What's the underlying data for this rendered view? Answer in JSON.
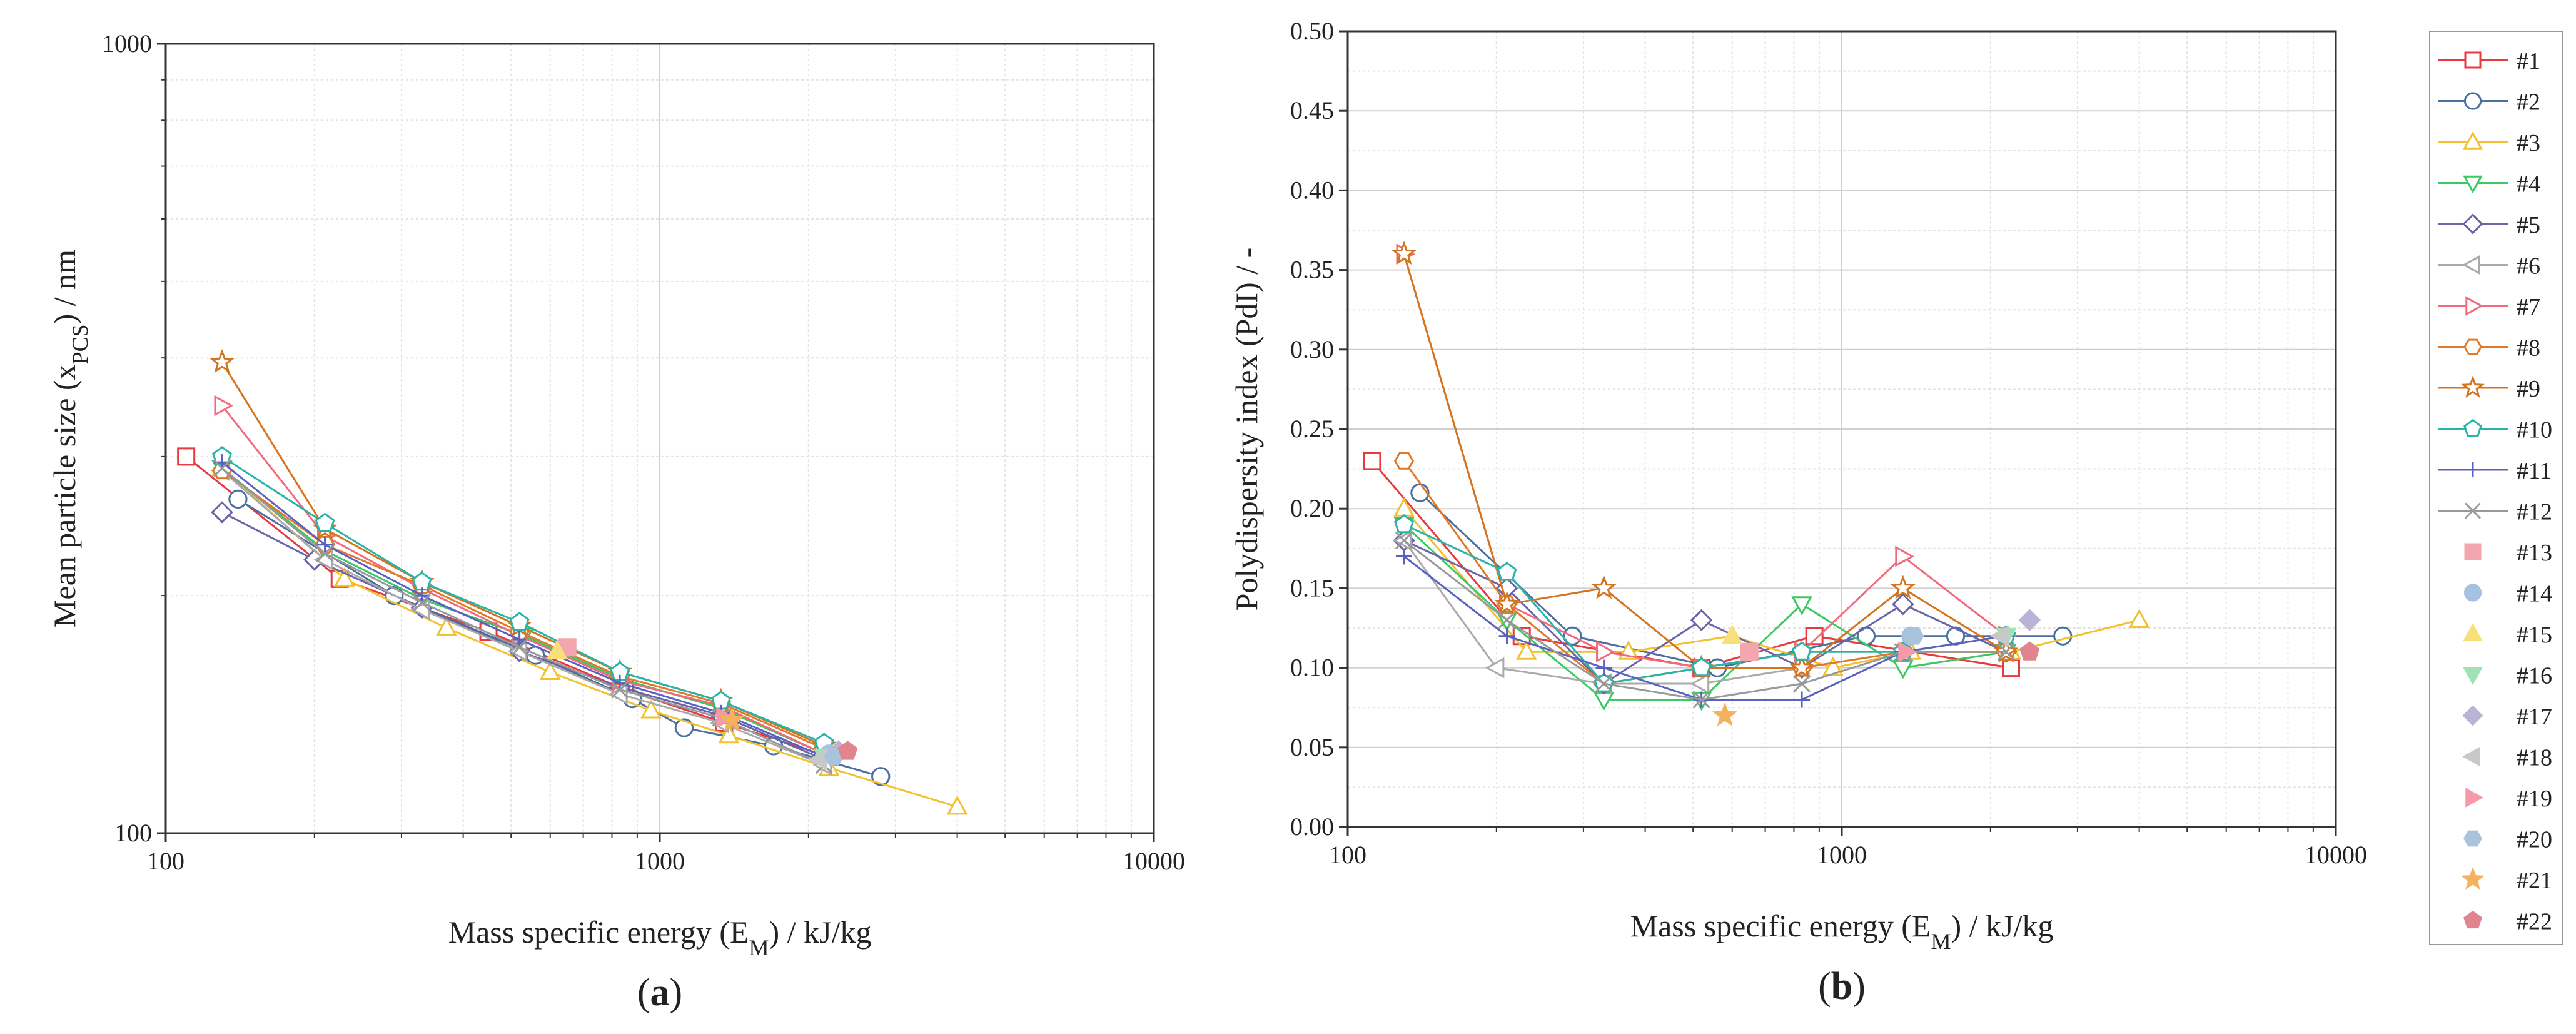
{
  "figure": {
    "panel_labels": [
      "(a)",
      "(b)"
    ]
  },
  "legend": [
    {
      "name": "#1",
      "color": "#e8393f",
      "marker": "square",
      "filled": false
    },
    {
      "name": "#2",
      "color": "#4a6fa0",
      "marker": "circle",
      "filled": false
    },
    {
      "name": "#3",
      "color": "#f2c12e",
      "marker": "triangle-up",
      "filled": false
    },
    {
      "name": "#4",
      "color": "#3cc864",
      "marker": "triangle-down",
      "filled": false
    },
    {
      "name": "#5",
      "color": "#6a64a8",
      "marker": "diamond",
      "filled": false
    },
    {
      "name": "#6",
      "color": "#aaaaaa",
      "marker": "triangle-left",
      "filled": false
    },
    {
      "name": "#7",
      "color": "#f26a7e",
      "marker": "triangle-right",
      "filled": false
    },
    {
      "name": "#8",
      "color": "#e07a2a",
      "marker": "hexagon",
      "filled": false
    },
    {
      "name": "#9",
      "color": "#d4751e",
      "marker": "star",
      "filled": false
    },
    {
      "name": "#10",
      "color": "#2ab3a8",
      "marker": "pentagon",
      "filled": false
    },
    {
      "name": "#11",
      "color": "#5a62c0",
      "marker": "plus",
      "filled": false
    },
    {
      "name": "#12",
      "color": "#999999",
      "marker": "x",
      "filled": false
    },
    {
      "name": "#13",
      "color": "#f4a6ae",
      "marker": "square",
      "filled": true
    },
    {
      "name": "#14",
      "color": "#a7c2e0",
      "marker": "circle",
      "filled": true
    },
    {
      "name": "#15",
      "color": "#f7e07a",
      "marker": "triangle-up",
      "filled": true
    },
    {
      "name": "#16",
      "color": "#9fe3b4",
      "marker": "triangle-down",
      "filled": true
    },
    {
      "name": "#17",
      "color": "#b9b4d6",
      "marker": "diamond",
      "filled": true
    },
    {
      "name": "#18",
      "color": "#c8c8c8",
      "marker": "triangle-left",
      "filled": true
    },
    {
      "name": "#19",
      "color": "#f59aa6",
      "marker": "triangle-right",
      "filled": true
    },
    {
      "name": "#20",
      "color": "#a8c4dc",
      "marker": "hexagon",
      "filled": true
    },
    {
      "name": "#21",
      "color": "#f5b15e",
      "marker": "star",
      "filled": true
    },
    {
      "name": "#22",
      "color": "#e0858e",
      "marker": "pentagon",
      "filled": true
    }
  ],
  "chart_data": [
    {
      "type": "scatter",
      "panel": "(a)",
      "xlabel": "Mass specific energy (E",
      "xlabel_sub": "M",
      "xlabel_tail": ") / kJ/kg",
      "ylabel": "Mean particle size (x",
      "ylabel_sub": "PCS",
      "ylabel_tail": ") / nm",
      "xscale": "log",
      "yscale": "log",
      "xlim": [
        100,
        10000
      ],
      "ylim": [
        100,
        1000
      ],
      "xticks": [
        100,
        1000,
        10000
      ],
      "xtick_labels": [
        "100",
        "1000",
        "10000"
      ],
      "yticks": [
        100,
        1000
      ],
      "ytick_labels": [
        "100",
        "1000"
      ],
      "grid": true,
      "legend": "right",
      "series": [
        {
          "name": "#1",
          "x": [
            110,
            225,
            450,
            850,
            1350,
            2200
          ],
          "y": [
            300,
            210,
            180,
            152,
            138,
            125
          ]
        },
        {
          "name": "#2",
          "x": [
            140,
            290,
            560,
            880,
            1120,
            1700,
            2800
          ],
          "y": [
            265,
            200,
            168,
            148,
            136,
            129,
            118
          ]
        },
        {
          "name": "#3",
          "x": [
            130,
            230,
            370,
            600,
            960,
            1380,
            2200,
            4000
          ],
          "y": [
            290,
            210,
            182,
            160,
            143,
            133,
            121,
            108
          ]
        },
        {
          "name": "#4",
          "x": [
            130,
            210,
            330,
            530,
            830,
            1330,
            2150
          ],
          "y": [
            290,
            228,
            198,
            178,
            157,
            144,
            126
          ]
        },
        {
          "name": "#5",
          "x": [
            130,
            200,
            330,
            520,
            830,
            1330,
            2150
          ],
          "y": [
            255,
            222,
            193,
            170,
            153,
            141,
            124
          ]
        },
        {
          "name": "#6",
          "x": [
            130,
            210,
            330,
            520,
            830,
            1330,
            2150
          ],
          "y": [
            288,
            222,
            192,
            170,
            150,
            138,
            122
          ]
        },
        {
          "name": "#7",
          "x": [
            130,
            210,
            330,
            520,
            830,
            1330,
            2150
          ],
          "y": [
            348,
            238,
            204,
            178,
            156,
            145,
            126
          ]
        },
        {
          "name": "#8",
          "x": [
            130,
            210,
            330,
            520,
            830,
            1330,
            2150
          ],
          "y": [
            288,
            232,
            206,
            180,
            158,
            146,
            128
          ]
        },
        {
          "name": "#9",
          "x": [
            130,
            210,
            330,
            520,
            830,
            1330,
            2150
          ],
          "y": [
            395,
            243,
            208,
            183,
            160,
            147,
            129
          ]
        },
        {
          "name": "#10",
          "x": [
            130,
            210,
            330,
            520,
            830,
            1330,
            2150
          ],
          "y": [
            300,
            247,
            208,
            185,
            160,
            147,
            130
          ]
        },
        {
          "name": "#11",
          "x": [
            130,
            210,
            330,
            520,
            830,
            1330,
            2150
          ],
          "y": [
            295,
            232,
            200,
            176,
            155,
            142,
            125
          ]
        },
        {
          "name": "#12",
          "x": [
            130,
            210,
            330,
            520,
            830,
            1330,
            2150
          ],
          "y": [
            290,
            226,
            196,
            172,
            152,
            140,
            122
          ]
        },
        {
          "name": "#13",
          "x": [
            650
          ],
          "y": [
            172
          ]
        },
        {
          "name": "#14",
          "x": [
            2200
          ],
          "y": [
            126
          ]
        },
        {
          "name": "#15",
          "x": [
            620
          ],
          "y": [
            170
          ]
        },
        {
          "name": "#16",
          "x": [
            2150
          ],
          "y": [
            125
          ]
        },
        {
          "name": "#17",
          "x": [
            2300
          ],
          "y": [
            127
          ]
        },
        {
          "name": "#18",
          "x": [
            2100
          ],
          "y": [
            124
          ]
        },
        {
          "name": "#19",
          "x": [
            1350
          ],
          "y": [
            140
          ]
        },
        {
          "name": "#20",
          "x": [
            2250
          ],
          "y": [
            125
          ]
        },
        {
          "name": "#21",
          "x": [
            1400
          ],
          "y": [
            139
          ]
        },
        {
          "name": "#22",
          "x": [
            2400
          ],
          "y": [
            127
          ]
        }
      ]
    },
    {
      "type": "scatter",
      "panel": "(b)",
      "xlabel": "Mass specific energy (E",
      "xlabel_sub": "M",
      "xlabel_tail": ") / kJ/kg",
      "ylabel": "Polydispersity index (PdI) / -",
      "xscale": "log",
      "yscale": "linear",
      "xlim": [
        100,
        10000
      ],
      "ylim": [
        0,
        0.5
      ],
      "xticks": [
        100,
        1000,
        10000
      ],
      "xtick_labels": [
        "100",
        "1000",
        "10000"
      ],
      "yticks": [
        0,
        0.05,
        0.1,
        0.15,
        0.2,
        0.25,
        0.3,
        0.35,
        0.4,
        0.45,
        0.5
      ],
      "ytick_labels": [
        "0.00",
        "0.05",
        "0.10",
        "0.15",
        "0.20",
        "0.25",
        "0.30",
        "0.35",
        "0.40",
        "0.45",
        "0.50"
      ],
      "grid": true,
      "legend": "right",
      "series": [
        {
          "name": "#1",
          "x": [
            112,
            225,
            520,
            880,
            2200
          ],
          "y": [
            0.23,
            0.12,
            0.1,
            0.12,
            0.1
          ]
        },
        {
          "name": "#2",
          "x": [
            140,
            285,
            560,
            1120,
            1700,
            2800
          ],
          "y": [
            0.21,
            0.12,
            0.1,
            0.12,
            0.12,
            0.12
          ]
        },
        {
          "name": "#3",
          "x": [
            130,
            230,
            370,
            600,
            960,
            1380,
            2200,
            4000
          ],
          "y": [
            0.2,
            0.11,
            0.11,
            0.12,
            0.1,
            0.11,
            0.11,
            0.13
          ]
        },
        {
          "name": "#4",
          "x": [
            130,
            210,
            330,
            520,
            830,
            1330,
            2150
          ],
          "y": [
            0.19,
            0.13,
            0.08,
            0.08,
            0.14,
            0.1,
            0.11
          ]
        },
        {
          "name": "#5",
          "x": [
            130,
            210,
            330,
            520,
            830,
            1330,
            2150
          ],
          "y": [
            0.18,
            0.15,
            0.09,
            0.13,
            0.1,
            0.14,
            0.11
          ]
        },
        {
          "name": "#6",
          "x": [
            130,
            200,
            330,
            520,
            830,
            1330,
            2150
          ],
          "y": [
            0.18,
            0.1,
            0.09,
            0.09,
            0.1,
            0.11,
            0.11
          ]
        },
        {
          "name": "#7",
          "x": [
            130,
            210,
            330,
            520,
            830,
            1330,
            2150
          ],
          "y": [
            0.36,
            0.14,
            0.11,
            0.1,
            0.11,
            0.17,
            0.12
          ]
        },
        {
          "name": "#8",
          "x": [
            130,
            210,
            330,
            520,
            830,
            1330,
            2150
          ],
          "y": [
            0.23,
            0.14,
            0.09,
            0.1,
            0.1,
            0.11,
            0.11
          ]
        },
        {
          "name": "#9",
          "x": [
            130,
            210,
            330,
            520,
            830,
            1330,
            2150
          ],
          "y": [
            0.36,
            0.14,
            0.15,
            0.1,
            0.1,
            0.15,
            0.11
          ]
        },
        {
          "name": "#10",
          "x": [
            130,
            210,
            330,
            520,
            830,
            1330,
            2150
          ],
          "y": [
            0.19,
            0.16,
            0.09,
            0.1,
            0.11,
            0.11,
            0.12
          ]
        },
        {
          "name": "#11",
          "x": [
            130,
            210,
            330,
            520,
            830,
            1330,
            2150
          ],
          "y": [
            0.17,
            0.12,
            0.1,
            0.08,
            0.08,
            0.11,
            0.12
          ]
        },
        {
          "name": "#12",
          "x": [
            130,
            210,
            330,
            520,
            830,
            1330,
            2150
          ],
          "y": [
            0.18,
            0.13,
            0.09,
            0.08,
            0.09,
            0.11,
            0.11
          ]
        },
        {
          "name": "#13",
          "x": [
            650
          ],
          "y": [
            0.11
          ]
        },
        {
          "name": "#14",
          "x": [
            1380
          ],
          "y": [
            0.12
          ]
        },
        {
          "name": "#15",
          "x": [
            600
          ],
          "y": [
            0.12
          ]
        },
        {
          "name": "#16",
          "x": [
            2150
          ],
          "y": [
            0.12
          ]
        },
        {
          "name": "#17",
          "x": [
            2400
          ],
          "y": [
            0.13
          ]
        },
        {
          "name": "#18",
          "x": [
            2100
          ],
          "y": [
            0.12
          ]
        },
        {
          "name": "#19",
          "x": [
            1350
          ],
          "y": [
            0.11
          ]
        },
        {
          "name": "#20",
          "x": [
            1400
          ],
          "y": [
            0.12
          ]
        },
        {
          "name": "#21",
          "x": [
            580
          ],
          "y": [
            0.07
          ]
        },
        {
          "name": "#22",
          "x": [
            2400
          ],
          "y": [
            0.11
          ]
        }
      ]
    }
  ]
}
